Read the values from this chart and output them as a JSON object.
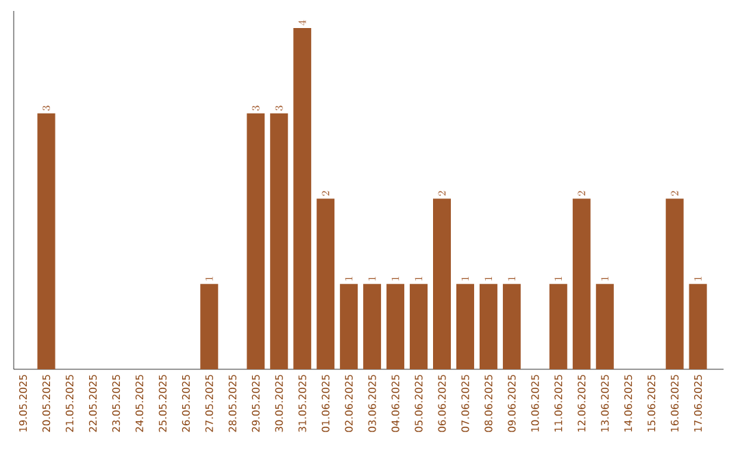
{
  "chart_data": {
    "type": "bar",
    "categories": [
      "19.05.2025",
      "20.05.2025",
      "21.05.2025",
      "22.05.2025",
      "23.05.2025",
      "24.05.2025",
      "25.05.2025",
      "26.05.2025",
      "27.05.2025",
      "28.05.2025",
      "29.05.2025",
      "30.05.2025",
      "31.05.2025",
      "01.06.2025",
      "02.06.2025",
      "03.06.2025",
      "04.06.2025",
      "05.06.2025",
      "06.06.2025",
      "07.06.2025",
      "08.06.2025",
      "09.06.2025",
      "10.06.2025",
      "11.06.2025",
      "12.06.2025",
      "13.06.2025",
      "14.06.2025",
      "15.06.2025",
      "16.06.2025",
      "17.06.2025"
    ],
    "values": [
      null,
      3,
      null,
      null,
      null,
      null,
      null,
      null,
      1,
      null,
      3,
      3,
      4,
      2,
      1,
      1,
      1,
      1,
      2,
      1,
      1,
      1,
      null,
      1,
      2,
      1,
      null,
      null,
      2,
      1
    ],
    "color": "#a0572a",
    "ylim": [
      0,
      4.2
    ],
    "data_labels": true,
    "tick_labels": "x",
    "grid": false
  }
}
